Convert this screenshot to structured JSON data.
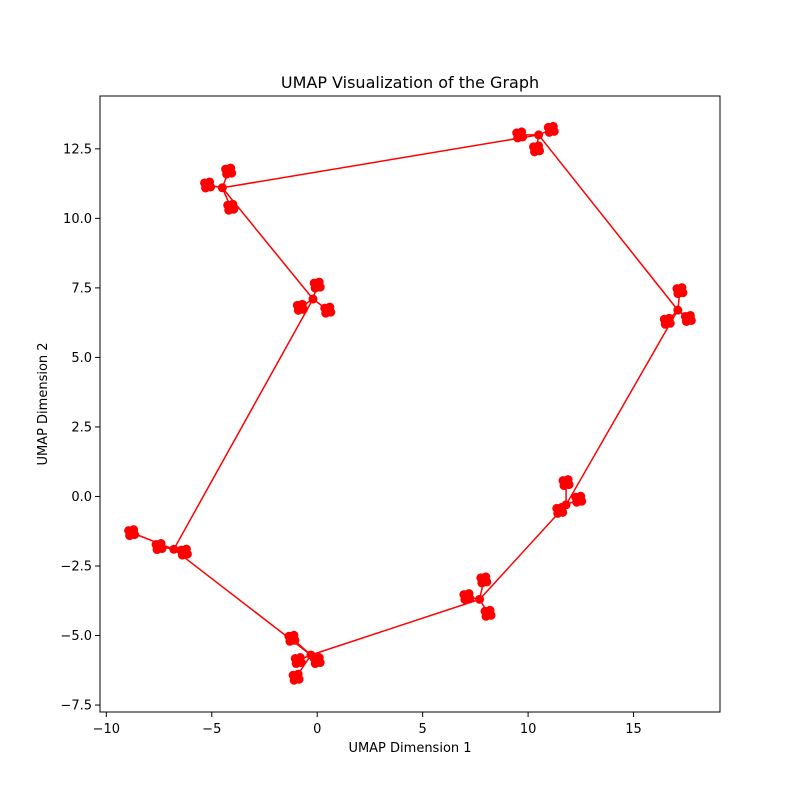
{
  "chart_data": {
    "type": "scatter",
    "title": "UMAP Visualization of the Graph",
    "xlabel": "UMAP Dimension 1",
    "ylabel": "UMAP Dimension 2",
    "xlim": [
      -10.3,
      19.1
    ],
    "ylim": [
      -7.75,
      14.4
    ],
    "xticks": [
      -10,
      -5,
      0,
      5,
      10,
      15
    ],
    "xtick_labels": [
      "−10",
      "−5",
      "0",
      "5",
      "10",
      "15"
    ],
    "yticks": [
      -7.5,
      -5.0,
      -2.5,
      0.0,
      2.5,
      5.0,
      7.5,
      10.0,
      12.5
    ],
    "ytick_labels": [
      "−7.5",
      "−5.0",
      "−2.5",
      "0.0",
      "2.5",
      "5.0",
      "7.5",
      "10.0",
      "12.5"
    ],
    "grid": false,
    "color": "#ff0000",
    "hubs": [
      {
        "x": 10.5,
        "y": 13.0
      },
      {
        "x": 17.1,
        "y": 6.7
      },
      {
        "x": 11.8,
        "y": -0.3
      },
      {
        "x": 7.7,
        "y": -3.7
      },
      {
        "x": -0.3,
        "y": -5.7
      },
      {
        "x": -6.8,
        "y": -1.9
      },
      {
        "x": -0.2,
        "y": 7.1
      },
      {
        "x": -4.5,
        "y": 11.1
      }
    ],
    "clusters": [
      {
        "hub": 0,
        "leaves": [
          {
            "x": 9.6,
            "y": 13.0
          },
          {
            "x": 11.1,
            "y": 13.2
          },
          {
            "x": 10.4,
            "y": 12.5
          }
        ]
      },
      {
        "hub": 1,
        "leaves": [
          {
            "x": 17.2,
            "y": 7.4
          },
          {
            "x": 17.6,
            "y": 6.4
          },
          {
            "x": 16.6,
            "y": 6.3
          }
        ]
      },
      {
        "hub": 2,
        "leaves": [
          {
            "x": 11.8,
            "y": 0.5
          },
          {
            "x": 12.4,
            "y": -0.1
          },
          {
            "x": 11.5,
            "y": -0.5
          }
        ]
      },
      {
        "hub": 3,
        "leaves": [
          {
            "x": 7.9,
            "y": -3.0
          },
          {
            "x": 8.1,
            "y": -4.2
          },
          {
            "x": 7.1,
            "y": -3.6
          }
        ]
      },
      {
        "hub": 4,
        "leaves": [
          {
            "x": 0.0,
            "y": -5.9
          },
          {
            "x": -0.9,
            "y": -5.9
          },
          {
            "x": -1.2,
            "y": -5.1
          },
          {
            "x": -1.0,
            "y": -6.5
          }
        ]
      },
      {
        "hub": 5,
        "leaves": [
          {
            "x": -7.5,
            "y": -1.8
          },
          {
            "x": -6.3,
            "y": -2.0
          },
          {
            "x": -8.8,
            "y": -1.3
          }
        ]
      },
      {
        "hub": 6,
        "leaves": [
          {
            "x": 0.0,
            "y": 7.6
          },
          {
            "x": -0.8,
            "y": 6.8
          },
          {
            "x": 0.5,
            "y": 6.7
          }
        ]
      },
      {
        "hub": 7,
        "leaves": [
          {
            "x": -4.2,
            "y": 11.7
          },
          {
            "x": -5.2,
            "y": 11.2
          },
          {
            "x": -4.1,
            "y": 10.4
          }
        ]
      }
    ]
  }
}
